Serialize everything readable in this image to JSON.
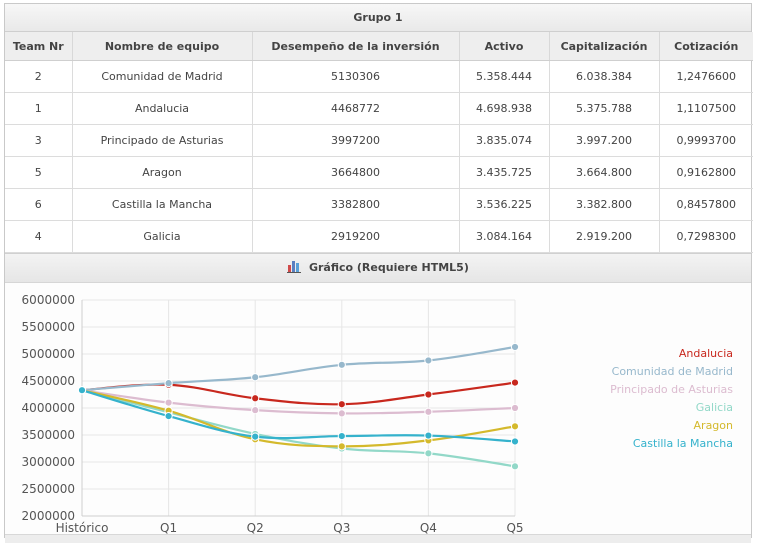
{
  "group": {
    "title": "Grupo 1"
  },
  "table": {
    "headers": [
      "Team Nr",
      "Nombre de equipo",
      "Desempeño de la inversión",
      "Activo",
      "Capitalización",
      "Cotización"
    ],
    "rows": [
      [
        "2",
        "Comunidad de Madrid",
        "5130306",
        "5.358.444",
        "6.038.384",
        "1,2476600"
      ],
      [
        "1",
        "Andalucia",
        "4468772",
        "4.698.938",
        "5.375.788",
        "1,1107500"
      ],
      [
        "3",
        "Principado de Asturias",
        "3997200",
        "3.835.074",
        "3.997.200",
        "0,9993700"
      ],
      [
        "5",
        "Aragon",
        "3664800",
        "3.435.725",
        "3.664.800",
        "0,9162800"
      ],
      [
        "6",
        "Castilla la Mancha",
        "3382800",
        "3.536.225",
        "3.382.800",
        "0,8457800"
      ],
      [
        "4",
        "Galicia",
        "2919200",
        "3.084.164",
        "2.919.200",
        "0,7298300"
      ]
    ]
  },
  "chart_section": {
    "title": "Gráfico (Requiere HTML5)",
    "icon": "bar-chart-icon"
  },
  "chart_data": {
    "type": "line",
    "categories": [
      "Histórico",
      "Q1",
      "Q2",
      "Q3",
      "Q4",
      "Q5"
    ],
    "ylim": [
      2000000,
      6000000
    ],
    "yticks": [
      6000000,
      5500000,
      5000000,
      4500000,
      4000000,
      3500000,
      3000000,
      2500000,
      2000000
    ],
    "grid": true,
    "legend_position": "right",
    "series": [
      {
        "name": "Andalucia",
        "color": "#c8281e",
        "values": [
          4330000,
          4430000,
          4180000,
          4070000,
          4250000,
          4470000
        ]
      },
      {
        "name": "Comunidad de Madrid",
        "color": "#97b8cc",
        "values": [
          4330000,
          4460000,
          4570000,
          4800000,
          4880000,
          5130000
        ]
      },
      {
        "name": "Principado de Asturias",
        "color": "#dcbcd0",
        "values": [
          4330000,
          4100000,
          3960000,
          3900000,
          3930000,
          4000000
        ]
      },
      {
        "name": "Galicia",
        "color": "#92d8c8",
        "values": [
          4330000,
          3920000,
          3520000,
          3250000,
          3160000,
          2920000
        ]
      },
      {
        "name": "Aragon",
        "color": "#d4b92c",
        "values": [
          4330000,
          3950000,
          3420000,
          3290000,
          3400000,
          3660000
        ]
      },
      {
        "name": "Castilla la Mancha",
        "color": "#35b2cc",
        "values": [
          4330000,
          3850000,
          3470000,
          3480000,
          3490000,
          3380000
        ]
      }
    ]
  }
}
